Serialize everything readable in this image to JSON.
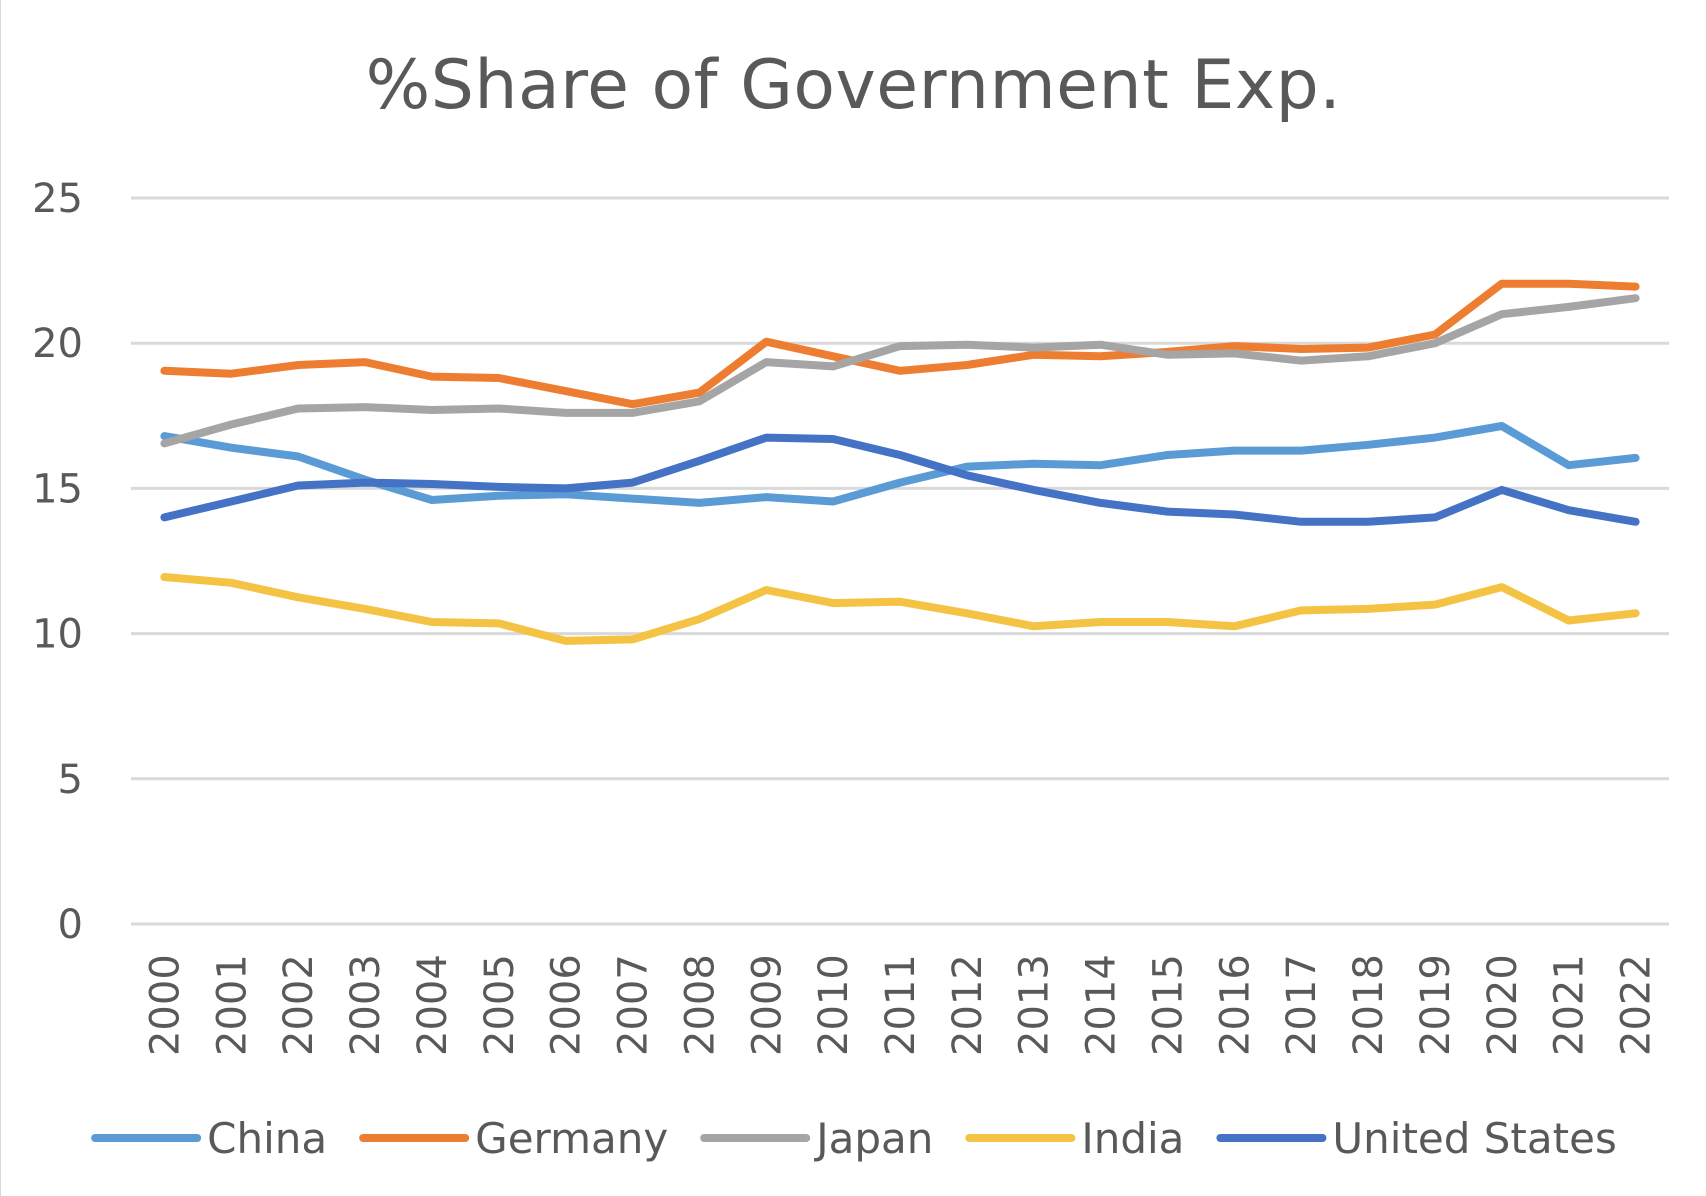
{
  "chart_data": {
    "type": "line",
    "title": "%Share of Government Exp.",
    "xlabel": "",
    "ylabel": "",
    "x": [
      "2000",
      "2001",
      "2002",
      "2003",
      "2004",
      "2005",
      "2006",
      "2007",
      "2008",
      "2009",
      "2010",
      "2011",
      "2012",
      "2013",
      "2014",
      "2015",
      "2016",
      "2017",
      "2018",
      "2019",
      "2020",
      "2021",
      "2022"
    ],
    "ylim": [
      0,
      25
    ],
    "yticks": [
      0,
      5,
      10,
      15,
      20,
      25
    ],
    "ytick_labels": [
      "0",
      "5",
      "10",
      "15",
      "20",
      "25"
    ],
    "grid": true,
    "legend_position": "bottom",
    "series": [
      {
        "name": "China",
        "color": "#5b9bd5",
        "values": [
          16.8,
          16.4,
          16.1,
          15.3,
          14.6,
          14.75,
          14.8,
          14.65,
          14.5,
          14.7,
          14.55,
          15.2,
          15.75,
          15.85,
          15.8,
          16.15,
          16.3,
          16.3,
          16.5,
          16.75,
          17.15,
          15.8,
          16.05
        ]
      },
      {
        "name": "Germany",
        "color": "#ed7d31",
        "values": [
          19.05,
          18.95,
          19.25,
          19.35,
          18.85,
          18.8,
          18.35,
          17.9,
          18.3,
          20.05,
          19.55,
          19.05,
          19.25,
          19.6,
          19.55,
          19.7,
          19.9,
          19.8,
          19.85,
          20.3,
          22.05,
          22.05,
          21.95
        ]
      },
      {
        "name": "Japan",
        "color": "#a5a5a5",
        "values": [
          16.55,
          17.2,
          17.75,
          17.8,
          17.7,
          17.75,
          17.6,
          17.6,
          18.0,
          19.35,
          19.2,
          19.9,
          19.95,
          19.85,
          19.95,
          19.6,
          19.65,
          19.4,
          19.55,
          20.0,
          21.0,
          21.25,
          21.55
        ]
      },
      {
        "name": "India",
        "color": "#f5c343",
        "values": [
          11.95,
          11.75,
          11.25,
          10.85,
          10.4,
          10.35,
          9.75,
          9.8,
          10.5,
          11.5,
          11.05,
          11.1,
          10.7,
          10.25,
          10.4,
          10.4,
          10.25,
          10.8,
          10.85,
          11.0,
          11.6,
          10.45,
          10.7
        ]
      },
      {
        "name": "United States",
        "color": "#4472c4",
        "values": [
          14.0,
          14.55,
          15.1,
          15.2,
          15.15,
          15.05,
          15.0,
          15.2,
          15.95,
          16.75,
          16.7,
          16.15,
          15.45,
          14.95,
          14.5,
          14.2,
          14.1,
          13.85,
          13.85,
          14.0,
          14.95,
          14.25,
          13.85
        ]
      }
    ]
  }
}
